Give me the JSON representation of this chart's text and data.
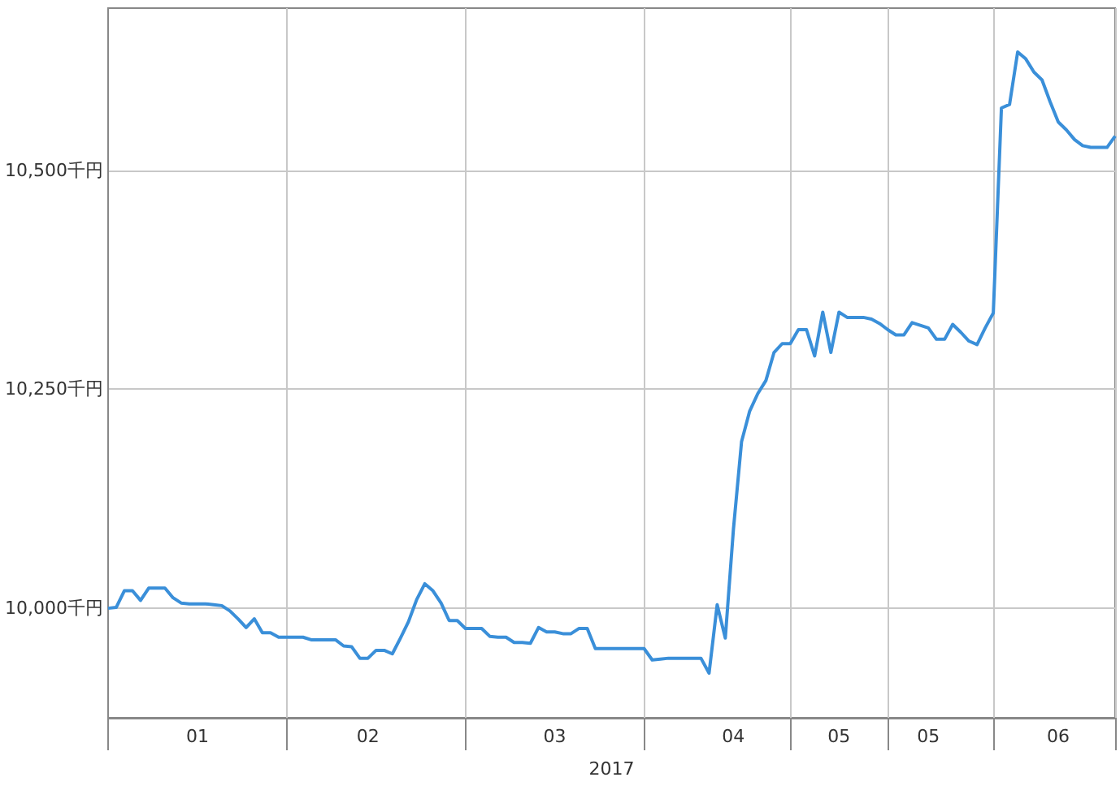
{
  "chart_data": {
    "type": "line",
    "xlabel": "2017",
    "color": "#3a8fd9",
    "categories": [
      null,
      null,
      null,
      null,
      null,
      null,
      null,
      null,
      null,
      null,
      null,
      "01",
      null,
      null,
      null,
      null,
      null,
      null,
      null,
      null,
      null,
      null,
      null,
      null,
      null,
      null,
      null,
      null,
      null,
      null,
      null,
      null,
      "02",
      null,
      null,
      null,
      null,
      null,
      null,
      null,
      null,
      null,
      null,
      null,
      null,
      null,
      null,
      null,
      null,
      null,
      null,
      null,
      null,
      null,
      null,
      "03",
      null,
      null,
      null,
      null,
      null,
      null,
      null,
      null,
      null,
      null,
      null,
      null,
      null,
      null,
      null,
      null,
      null,
      null,
      null,
      null,
      null,
      "04",
      null,
      null,
      null,
      null,
      null,
      null,
      null,
      null,
      null,
      null,
      null,
      null,
      "05",
      null,
      null,
      null,
      null,
      null,
      null,
      null,
      null,
      null,
      null,
      "05",
      null,
      null,
      null,
      null,
      null,
      null,
      null,
      null,
      null,
      null,
      null,
      null,
      null,
      null,
      null,
      "06",
      null,
      null,
      null,
      null,
      null,
      null,
      null
    ],
    "values": [
      10000,
      10001,
      10020,
      10020,
      10009,
      10023,
      10023,
      10023,
      10012,
      10006,
      10005,
      10005,
      10005,
      10004,
      10003,
      9997,
      9988,
      9978,
      9988,
      9972,
      9972,
      9967,
      9967,
      9967,
      9967,
      9964,
      9964,
      9964,
      9964,
      9957,
      9956,
      9943,
      9943,
      9952,
      9952,
      9948,
      9966,
      9985,
      10010,
      10028,
      10020,
      10006,
      9986,
      9986,
      9977,
      9977,
      9977,
      9968,
      9967,
      9967,
      9961,
      9961,
      9960,
      9978,
      9973,
      9973,
      9971,
      9971,
      9977,
      9977,
      9954,
      9954,
      9954,
      9954,
      9954,
      9954,
      9954,
      9941,
      9942,
      9943,
      9943,
      9943,
      9943,
      9943,
      9926,
      10004,
      9966,
      10090,
      10190,
      10225,
      10245,
      10260,
      10292,
      10302,
      10302,
      10318,
      10318,
      10288,
      10338,
      10292,
      10338,
      10332,
      10332,
      10332,
      10330,
      10325,
      10318,
      10312,
      10312,
      10326,
      10323,
      10320,
      10307,
      10307,
      10324,
      10315,
      10305,
      10301,
      10320,
      10337,
      10571,
      10575,
      10635,
      10627,
      10612,
      10603,
      10578,
      10555,
      10546,
      10535,
      10528,
      10526,
      10526,
      10526,
      10539
    ],
    "ylim": [
      9875,
      10685
    ],
    "yticks": [
      {
        "value": 10000,
        "label": "10,000千円"
      },
      {
        "value": 10250,
        "label": "10,250千円"
      },
      {
        "value": 10500,
        "label": "10,500千円"
      }
    ],
    "grid": true,
    "marker": "none",
    "line_style": "solid"
  }
}
